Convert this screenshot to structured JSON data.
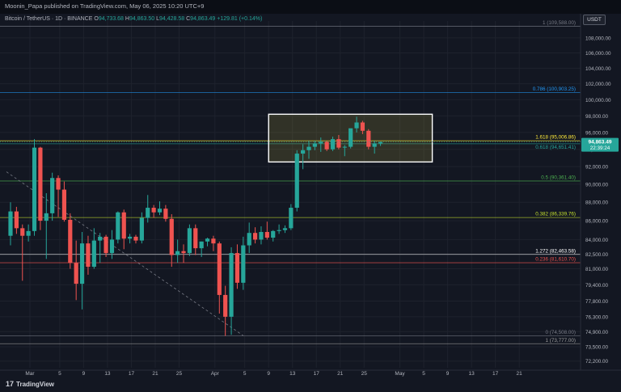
{
  "header": {
    "publish_text": "Moonin_Papa published on TradingView.com, May 06, 2025 10:20 UTC+9"
  },
  "legend": {
    "symbol": "Bitcoin / TetherUS · 1D · BINANCE",
    "open_label": "O",
    "open": "94,733.68",
    "high_label": "H",
    "high": "94,863.50",
    "low_label": "L",
    "low": "94,428.58",
    "close_label": "C",
    "close": "94,863.49",
    "change": "+129.81 (+0.14%)"
  },
  "currency_badge": "USDT",
  "footer": {
    "logo_text": "TradingView",
    "logo_glyph": "17"
  },
  "price_axis": {
    "labels": [
      "108,000.00",
      "106,000.00",
      "104,000.00",
      "102,000.00",
      "100,000.00",
      "98,000.00",
      "96,000.00",
      "94,000.00",
      "92,000.00",
      "90,000.00",
      "88,000.00",
      "86,000.00",
      "84,000.00",
      "82,500.00",
      "81,000.00",
      "79,400.00",
      "77,800.00",
      "76,300.00",
      "74,900.00",
      "73,500.00",
      "72,200.00"
    ],
    "current_price": "94,863.49",
    "countdown": "22:39:24"
  },
  "time_axis": {
    "labels": [
      "Mar",
      "5",
      "9",
      "13",
      "17",
      "21",
      "25",
      "Apr",
      "5",
      "9",
      "13",
      "17",
      "21",
      "25",
      "May",
      "5",
      "9",
      "13",
      "17",
      "21"
    ]
  },
  "levels": [
    {
      "label": "1 (109,588.00)",
      "price": 109588,
      "color": "#787b86"
    },
    {
      "label": "0.786 (100,903.25)",
      "price": 100903.25,
      "color": "#2196f3"
    },
    {
      "label": "1.618 (95,006.86)",
      "price": 95006.86,
      "color": "#ffeb3b"
    },
    {
      "label": "0.618 (94,651.41)",
      "price": 94651.41,
      "color": "#26a69a"
    },
    {
      "label": "0.5 (90,361.40)",
      "price": 90361.4,
      "color": "#4caf50"
    },
    {
      "label": "0.382 (86,339.76)",
      "price": 86339.76,
      "color": "#c5e12e"
    },
    {
      "label": "1.272 (82,463.58)",
      "price": 82463.58,
      "color": "#ffffff"
    },
    {
      "label": "0.236 (81,610.70)",
      "price": 81610.7,
      "color": "#ef5350"
    },
    {
      "label": "0 (74,508.00)",
      "price": 74508,
      "color": "#787b86"
    },
    {
      "label": "1 (73,777.00)",
      "price": 73777,
      "color": "#9e9e9e"
    }
  ],
  "colors": {
    "up": "#26a69a",
    "down": "#ef5350",
    "background": "#131722",
    "box": "#ffffff"
  },
  "chart_data": {
    "type": "candlestick",
    "candles": [
      {
        "o": 84400,
        "h": 88000,
        "l": 83400,
        "c": 87000
      },
      {
        "o": 87000,
        "h": 87500,
        "l": 84600,
        "c": 85200
      },
      {
        "o": 85200,
        "h": 85600,
        "l": 79800,
        "c": 84400
      },
      {
        "o": 84400,
        "h": 85600,
        "l": 83800,
        "c": 84900
      },
      {
        "o": 84900,
        "h": 95200,
        "l": 84400,
        "c": 94200
      },
      {
        "o": 94200,
        "h": 94300,
        "l": 85000,
        "c": 86000
      },
      {
        "o": 86000,
        "h": 89000,
        "l": 82000,
        "c": 86800
      },
      {
        "o": 86800,
        "h": 91300,
        "l": 86000,
        "c": 90700
      },
      {
        "o": 90700,
        "h": 91000,
        "l": 86400,
        "c": 89400
      },
      {
        "o": 89400,
        "h": 90300,
        "l": 85900,
        "c": 86100
      },
      {
        "o": 86100,
        "h": 86800,
        "l": 81000,
        "c": 81600
      },
      {
        "o": 81600,
        "h": 83900,
        "l": 77900,
        "c": 79500
      },
      {
        "o": 79500,
        "h": 84800,
        "l": 77000,
        "c": 83600
      },
      {
        "o": 83600,
        "h": 84400,
        "l": 80400,
        "c": 81200
      },
      {
        "o": 81200,
        "h": 85200,
        "l": 81000,
        "c": 83900
      },
      {
        "o": 83900,
        "h": 84700,
        "l": 81600,
        "c": 84300
      },
      {
        "o": 84300,
        "h": 84500,
        "l": 82200,
        "c": 82600
      },
      {
        "o": 82600,
        "h": 85000,
        "l": 82000,
        "c": 84000
      },
      {
        "o": 84000,
        "h": 87000,
        "l": 83600,
        "c": 86900
      },
      {
        "o": 86900,
        "h": 87200,
        "l": 83000,
        "c": 84100
      },
      {
        "o": 84100,
        "h": 84600,
        "l": 83600,
        "c": 84300
      },
      {
        "o": 84300,
        "h": 84500,
        "l": 83600,
        "c": 83900
      },
      {
        "o": 83900,
        "h": 86900,
        "l": 83600,
        "c": 86300
      },
      {
        "o": 86300,
        "h": 88800,
        "l": 85800,
        "c": 87400
      },
      {
        "o": 87400,
        "h": 87700,
        "l": 86300,
        "c": 86900
      },
      {
        "o": 86900,
        "h": 88100,
        "l": 86600,
        "c": 87300
      },
      {
        "o": 87300,
        "h": 87700,
        "l": 85900,
        "c": 86200
      },
      {
        "o": 86200,
        "h": 86700,
        "l": 81200,
        "c": 82400
      },
      {
        "o": 82400,
        "h": 84000,
        "l": 81600,
        "c": 82800
      },
      {
        "o": 82800,
        "h": 83500,
        "l": 81600,
        "c": 82600
      },
      {
        "o": 82600,
        "h": 85600,
        "l": 82300,
        "c": 85200
      },
      {
        "o": 85200,
        "h": 85600,
        "l": 82400,
        "c": 83100
      },
      {
        "o": 83100,
        "h": 83800,
        "l": 82200,
        "c": 83800
      },
      {
        "o": 83800,
        "h": 84200,
        "l": 83300,
        "c": 84100
      },
      {
        "o": 84100,
        "h": 84400,
        "l": 82800,
        "c": 83600
      },
      {
        "o": 83600,
        "h": 83800,
        "l": 76600,
        "c": 78400
      },
      {
        "o": 78400,
        "h": 79300,
        "l": 74500,
        "c": 76300
      },
      {
        "o": 76300,
        "h": 83200,
        "l": 74600,
        "c": 82600
      },
      {
        "o": 82600,
        "h": 83500,
        "l": 79000,
        "c": 79600
      },
      {
        "o": 79600,
        "h": 84300,
        "l": 78900,
        "c": 83400
      },
      {
        "o": 83400,
        "h": 85800,
        "l": 82600,
        "c": 84700
      },
      {
        "o": 84700,
        "h": 85300,
        "l": 83600,
        "c": 84000
      },
      {
        "o": 84000,
        "h": 85400,
        "l": 83500,
        "c": 84800
      },
      {
        "o": 84800,
        "h": 85900,
        "l": 84000,
        "c": 84200
      },
      {
        "o": 84200,
        "h": 85000,
        "l": 83800,
        "c": 84900
      },
      {
        "o": 84900,
        "h": 85600,
        "l": 84600,
        "c": 85000
      },
      {
        "o": 85000,
        "h": 85500,
        "l": 84700,
        "c": 85200
      },
      {
        "o": 85200,
        "h": 87800,
        "l": 85000,
        "c": 87400
      },
      {
        "o": 87400,
        "h": 93900,
        "l": 87000,
        "c": 93500
      },
      {
        "o": 93500,
        "h": 94600,
        "l": 91700,
        "c": 93900
      },
      {
        "o": 93900,
        "h": 95000,
        "l": 92900,
        "c": 94300
      },
      {
        "o": 94300,
        "h": 95000,
        "l": 93900,
        "c": 94700
      },
      {
        "o": 94700,
        "h": 95400,
        "l": 93700,
        "c": 94900
      },
      {
        "o": 94900,
        "h": 95000,
        "l": 93800,
        "c": 94000
      },
      {
        "o": 94000,
        "h": 95500,
        "l": 93800,
        "c": 95200
      },
      {
        "o": 95200,
        "h": 95700,
        "l": 94000,
        "c": 94200
      },
      {
        "o": 94200,
        "h": 94500,
        "l": 93200,
        "c": 94300
      },
      {
        "o": 94300,
        "h": 96400,
        "l": 94100,
        "c": 96500
      },
      {
        "o": 96500,
        "h": 97900,
        "l": 96000,
        "c": 97200
      },
      {
        "o": 97200,
        "h": 97400,
        "l": 95800,
        "c": 96200
      },
      {
        "o": 96200,
        "h": 96400,
        "l": 94000,
        "c": 94300
      },
      {
        "o": 94300,
        "h": 95000,
        "l": 93500,
        "c": 94700
      },
      {
        "o": 94700,
        "h": 94900,
        "l": 94400,
        "c": 94863
      }
    ],
    "y_scale": "log",
    "ylim": [
      71600,
      110300
    ],
    "trendline": {
      "from": {
        "index": 0,
        "price": 91400
      },
      "to": {
        "index": 37,
        "price": 74508
      }
    },
    "highlight_box": {
      "start_index": 48,
      "end_index": 70,
      "price_top": 98500,
      "price_bottom": 93000
    }
  }
}
